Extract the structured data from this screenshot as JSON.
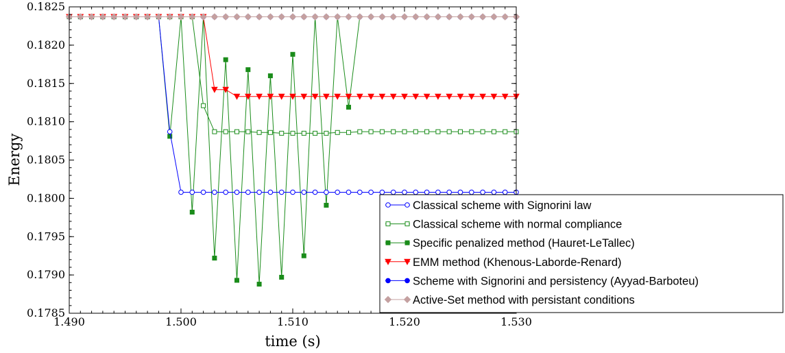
{
  "chart_data": {
    "type": "line",
    "xlabel": "time (s)",
    "ylabel": "Energy",
    "xlim": [
      1.49,
      1.53
    ],
    "ylim": [
      0.1785,
      0.1825
    ],
    "x_ticks": [
      1.49,
      1.5,
      1.51,
      1.52,
      1.53
    ],
    "x_tick_labels": [
      "1.490",
      "1.500",
      "1.510",
      "1.520",
      "1.530"
    ],
    "y_ticks": [
      0.1785,
      0.179,
      0.1795,
      0.18,
      0.1805,
      0.181,
      0.1815,
      0.182,
      0.1825
    ],
    "y_tick_labels": [
      "0.1785",
      "0.1790",
      "0.1795",
      "0.1800",
      "0.1805",
      "0.1810",
      "0.1815",
      "0.1820",
      "0.1825"
    ],
    "grid": false,
    "legend_position": "bottom-right",
    "series": [
      {
        "name": "Classical scheme with Signorini law",
        "color": "#0000ff",
        "marker": "open-circle",
        "x": [
          1.49,
          1.491,
          1.492,
          1.493,
          1.494,
          1.495,
          1.496,
          1.497,
          1.498,
          1.499,
          1.5,
          1.501,
          1.502,
          1.503,
          1.504,
          1.505,
          1.506,
          1.507,
          1.508,
          1.509,
          1.51,
          1.511,
          1.512,
          1.513,
          1.514,
          1.515,
          1.516,
          1.517,
          1.518,
          1.519,
          1.52,
          1.521,
          1.522,
          1.523,
          1.524,
          1.525,
          1.526,
          1.527,
          1.528,
          1.529,
          1.53
        ],
        "y": [
          0.18237,
          0.18237,
          0.18237,
          0.18237,
          0.18237,
          0.18237,
          0.18237,
          0.18237,
          0.18237,
          0.18087,
          0.18008,
          0.18008,
          0.18008,
          0.18008,
          0.18008,
          0.18008,
          0.18008,
          0.18008,
          0.18008,
          0.18008,
          0.18008,
          0.18008,
          0.18008,
          0.18008,
          0.18008,
          0.18008,
          0.18008,
          0.18008,
          0.18008,
          0.18008,
          0.18008,
          0.18008,
          0.18008,
          0.18008,
          0.18008,
          0.18008,
          0.18008,
          0.18008,
          0.18008,
          0.18008,
          0.18008
        ]
      },
      {
        "name": "Classical scheme with normal compliance",
        "color": "#1a8c1a",
        "marker": "open-square",
        "x": [
          1.49,
          1.491,
          1.492,
          1.493,
          1.494,
          1.495,
          1.496,
          1.497,
          1.498,
          1.499,
          1.5,
          1.501,
          1.502,
          1.503,
          1.504,
          1.505,
          1.506,
          1.507,
          1.508,
          1.509,
          1.51,
          1.511,
          1.512,
          1.513,
          1.514,
          1.515,
          1.516,
          1.517,
          1.518,
          1.519,
          1.52,
          1.521,
          1.522,
          1.523,
          1.524,
          1.525,
          1.526,
          1.527,
          1.528,
          1.529,
          1.53
        ],
        "y": [
          0.18237,
          0.18237,
          0.18237,
          0.18237,
          0.18237,
          0.18237,
          0.18237,
          0.18237,
          0.18237,
          0.18237,
          0.18237,
          0.18237,
          0.18121,
          0.18087,
          0.18087,
          0.18087,
          0.18087,
          0.18086,
          0.18086,
          0.18085,
          0.18085,
          0.18085,
          0.18085,
          0.18085,
          0.18086,
          0.18086,
          0.18087,
          0.18087,
          0.18087,
          0.18087,
          0.18087,
          0.18087,
          0.18087,
          0.18087,
          0.18087,
          0.18087,
          0.18087,
          0.18087,
          0.18087,
          0.18087,
          0.18087
        ]
      },
      {
        "name": "Specific penalized method (Hauret-LeTallec)",
        "color": "#1a8c1a",
        "marker": "filled-square",
        "x": [
          1.49,
          1.491,
          1.492,
          1.493,
          1.494,
          1.495,
          1.496,
          1.497,
          1.498,
          1.499,
          1.5,
          1.501,
          1.502,
          1.503,
          1.504,
          1.505,
          1.506,
          1.507,
          1.508,
          1.509,
          1.51,
          1.511,
          1.512,
          1.513,
          1.514,
          1.515,
          1.516,
          1.517,
          1.518,
          1.519,
          1.52,
          1.521,
          1.522,
          1.523,
          1.524,
          1.525,
          1.526,
          1.527,
          1.528,
          1.529,
          1.53
        ],
        "y": [
          0.18237,
          0.18237,
          0.18237,
          0.18237,
          0.18237,
          0.18237,
          0.18237,
          0.18237,
          0.18237,
          0.18081,
          0.18237,
          0.17982,
          0.18237,
          0.17922,
          0.18181,
          0.17893,
          0.18168,
          0.17888,
          0.1816,
          0.17897,
          0.18188,
          0.17925,
          0.18237,
          0.17991,
          0.18237,
          0.18119,
          0.18237,
          0.18237,
          0.18237,
          0.18237,
          0.18237,
          0.18237,
          0.18237,
          0.18237,
          0.18237,
          0.18237,
          0.18237,
          0.18237,
          0.18237,
          0.18237,
          0.18237
        ],
        "visible_marker_x": [
          1.499,
          1.501,
          1.503,
          1.504,
          1.505,
          1.506,
          1.507,
          1.508,
          1.509,
          1.51,
          1.511,
          1.513,
          1.515
        ]
      },
      {
        "name": "EMM method (Khenous-Laborde-Renard)",
        "color": "#ff0000",
        "marker": "filled-triangle-down",
        "x": [
          1.49,
          1.491,
          1.492,
          1.493,
          1.494,
          1.495,
          1.496,
          1.497,
          1.498,
          1.499,
          1.5,
          1.501,
          1.502,
          1.503,
          1.504,
          1.505,
          1.506,
          1.507,
          1.508,
          1.509,
          1.51,
          1.511,
          1.512,
          1.513,
          1.514,
          1.515,
          1.516,
          1.517,
          1.518,
          1.519,
          1.52,
          1.521,
          1.522,
          1.523,
          1.524,
          1.525,
          1.526,
          1.527,
          1.528,
          1.529,
          1.53
        ],
        "y": [
          0.18237,
          0.18237,
          0.18237,
          0.18237,
          0.18237,
          0.18237,
          0.18237,
          0.18237,
          0.18237,
          0.18237,
          0.18237,
          0.18237,
          0.18237,
          0.18142,
          0.18142,
          0.18133,
          0.18133,
          0.18133,
          0.18133,
          0.18133,
          0.18133,
          0.18133,
          0.18133,
          0.18133,
          0.18133,
          0.18133,
          0.18133,
          0.18133,
          0.18133,
          0.18133,
          0.18133,
          0.18133,
          0.18133,
          0.18133,
          0.18133,
          0.18133,
          0.18133,
          0.18133,
          0.18133,
          0.18133,
          0.18133
        ]
      },
      {
        "name": "Scheme with Signorini and persistency (Ayyad-Barboteu)",
        "color": "#0000ff",
        "marker": "filled-circle",
        "x": [
          1.49,
          1.491,
          1.492,
          1.493,
          1.494,
          1.495,
          1.496,
          1.497,
          1.498,
          1.499,
          1.5,
          1.501,
          1.502,
          1.503,
          1.504,
          1.505,
          1.506,
          1.507,
          1.508,
          1.509,
          1.51,
          1.511,
          1.512,
          1.513,
          1.514,
          1.515,
          1.516,
          1.517,
          1.518,
          1.519,
          1.52,
          1.521,
          1.522,
          1.523,
          1.524,
          1.525,
          1.526,
          1.527,
          1.528,
          1.529,
          1.53
        ],
        "y": [
          0.18237,
          0.18237,
          0.18237,
          0.18237,
          0.18237,
          0.18237,
          0.18237,
          0.18237,
          0.18237,
          0.18237,
          0.18237,
          0.18237,
          0.18237,
          0.18237,
          0.18237,
          0.18237,
          0.18237,
          0.18237,
          0.18237,
          0.18237,
          0.18237,
          0.18237,
          0.18237,
          0.18237,
          0.18237,
          0.18237,
          0.18237,
          0.18237,
          0.18237,
          0.18237,
          0.18237,
          0.18237,
          0.18237,
          0.18237,
          0.18237,
          0.18237,
          0.18237,
          0.18237,
          0.18237,
          0.18237,
          0.18237
        ]
      },
      {
        "name": "Active-Set method with persistant conditions",
        "color": "#c4a0a0",
        "marker": "filled-diamond",
        "x": [
          1.49,
          1.491,
          1.492,
          1.493,
          1.494,
          1.495,
          1.496,
          1.497,
          1.498,
          1.499,
          1.5,
          1.501,
          1.502,
          1.503,
          1.504,
          1.505,
          1.506,
          1.507,
          1.508,
          1.509,
          1.51,
          1.511,
          1.512,
          1.513,
          1.514,
          1.515,
          1.516,
          1.517,
          1.518,
          1.519,
          1.52,
          1.521,
          1.522,
          1.523,
          1.524,
          1.525,
          1.526,
          1.527,
          1.528,
          1.529,
          1.53
        ],
        "y": [
          0.18237,
          0.18237,
          0.18237,
          0.18237,
          0.18237,
          0.18237,
          0.18237,
          0.18237,
          0.18237,
          0.18237,
          0.18237,
          0.18237,
          0.18237,
          0.18237,
          0.18237,
          0.18237,
          0.18237,
          0.18237,
          0.18237,
          0.18237,
          0.18237,
          0.18237,
          0.18237,
          0.18237,
          0.18237,
          0.18237,
          0.18237,
          0.18237,
          0.18237,
          0.18237,
          0.18237,
          0.18237,
          0.18237,
          0.18237,
          0.18237,
          0.18237,
          0.18237,
          0.18237,
          0.18237,
          0.18237,
          0.18237
        ]
      }
    ]
  }
}
